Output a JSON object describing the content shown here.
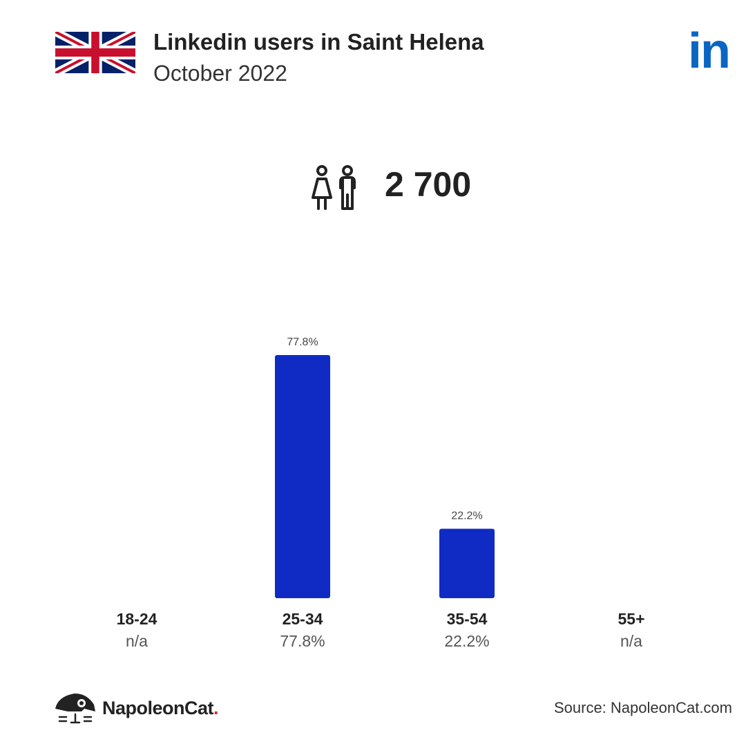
{
  "header": {
    "title": "Linkedin users in Saint Helena",
    "subtitle": "October 2022",
    "logo_text": "in",
    "flag_icon": "uk-flag-icon",
    "logo_icon": "linkedin-logo"
  },
  "total": {
    "icon": "people-icon",
    "value": "2 700"
  },
  "chart_data": {
    "type": "bar",
    "categories": [
      "18-24",
      "25-34",
      "35-54",
      "55+"
    ],
    "values": [
      null,
      77.8,
      22.2,
      null
    ],
    "value_labels": [
      "n/a",
      "77.8%",
      "22.2%",
      "n/a"
    ],
    "ylim": [
      0,
      77.8
    ],
    "grid": false,
    "bar_color": "#102BC4"
  },
  "footer": {
    "brand": "NapoleonCat",
    "brand_dot": ".",
    "brand_dot_color": "#E3262F",
    "source": "Source: NapoleonCat.com"
  },
  "colors": {
    "linkedin_blue": "#0A66C2",
    "bar": "#102BC4",
    "text": "#222222"
  }
}
